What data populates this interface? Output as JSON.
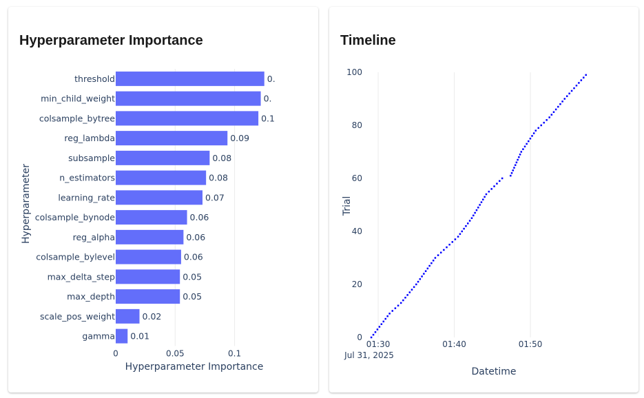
{
  "panels": {
    "importance": {
      "title": "Hyperparameter Importance"
    },
    "timeline": {
      "title": "Timeline"
    }
  },
  "chart_data": [
    {
      "type": "bar",
      "orientation": "horizontal",
      "title": "Hyperparameter Importance",
      "xlabel": "Hyperparameter Importance",
      "ylabel": "Hyperparameter",
      "xlim": [
        0,
        0.13
      ],
      "xticks": [
        0,
        0.05,
        0.1
      ],
      "xtick_labels": [
        "0",
        "0.05",
        "0.1"
      ],
      "bar_color": "#636efa",
      "categories": [
        "threshold",
        "min_child_weight",
        "colsample_bytree",
        "reg_lambda",
        "subsample",
        "n_estimators",
        "learning_rate",
        "colsample_bynode",
        "reg_alpha",
        "colsample_bylevel",
        "max_delta_step",
        "max_depth",
        "scale_pos_weight",
        "gamma"
      ],
      "values": [
        0.125,
        0.122,
        0.12,
        0.094,
        0.079,
        0.076,
        0.073,
        0.06,
        0.057,
        0.055,
        0.054,
        0.054,
        0.02,
        0.01
      ],
      "value_labels": [
        "0.",
        "0.",
        "0.1",
        "0.09",
        "0.08",
        "0.08",
        "0.07",
        "0.06",
        "0.06",
        "0.06",
        "0.05",
        "0.05",
        "0.02",
        "0.01"
      ],
      "grid": true
    },
    {
      "type": "scatter",
      "title": "Timeline",
      "xlabel": "Datetime",
      "ylabel": "Trial",
      "x_unit": "minutes past 01:00, Jul 31, 2025",
      "xlim": [
        29.0,
        59.0
      ],
      "ylim": [
        0,
        100
      ],
      "xticks": [
        30,
        40,
        50
      ],
      "xtick_labels": [
        "01:30",
        "01:40",
        "01:50"
      ],
      "xtick_sublabel": "Jul 31, 2025",
      "yticks": [
        0,
        20,
        40,
        60,
        80,
        100
      ],
      "marker_color": "#0000ff",
      "trial_range": [
        0,
        99
      ],
      "anchors": [
        [
          0,
          29.1
        ],
        [
          9,
          31.5
        ],
        [
          13,
          33.0
        ],
        [
          20,
          35.0
        ],
        [
          30,
          37.5
        ],
        [
          38,
          40.5
        ],
        [
          45,
          42.3
        ],
        [
          54,
          44.2
        ],
        [
          60,
          46.3
        ],
        [
          61,
          47.4
        ],
        [
          70,
          48.8
        ],
        [
          78,
          50.7
        ],
        [
          83,
          52.5
        ],
        [
          90,
          54.5
        ],
        [
          99,
          57.3
        ]
      ],
      "grid": true
    }
  ]
}
